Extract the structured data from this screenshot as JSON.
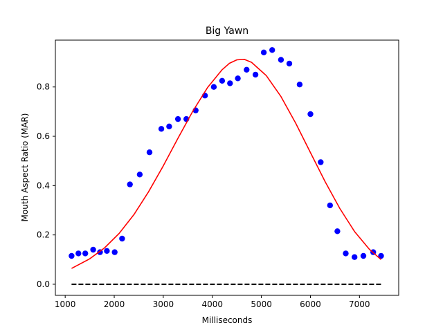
{
  "chart_data": {
    "type": "scatter",
    "title": "Big Yawn",
    "xlabel": "Milliseconds",
    "ylabel": "Mouth Aspect Ratio (MAR)",
    "xlim": [
      800,
      7800
    ],
    "ylim": [
      -0.045,
      0.99
    ],
    "xticks": [
      1000,
      2000,
      3000,
      4000,
      5000,
      6000,
      7000
    ],
    "yticks": [
      0.0,
      0.2,
      0.4,
      0.6,
      0.8
    ],
    "xtick_labels": [
      "1000",
      "2000",
      "3000",
      "4000",
      "5000",
      "6000",
      "7000"
    ],
    "ytick_labels": [
      "0.0",
      "0.2",
      "0.4",
      "0.6",
      "0.8"
    ],
    "grid": false,
    "colors": {
      "points": "#0000ff",
      "fit": "#ff0000",
      "baseline": "#000000"
    },
    "series": [
      {
        "kind": "points",
        "x": [
          1130,
          1270,
          1410,
          1570,
          1710,
          1850,
          2010,
          2160,
          2320,
          2520,
          2720,
          2960,
          3120,
          3300,
          3470,
          3660,
          3850,
          4030,
          4200,
          4360,
          4520,
          4700,
          4880,
          5050,
          5220,
          5400,
          5570,
          5780,
          6000,
          6210,
          6400,
          6550,
          6720,
          6900,
          7080,
          7280,
          7440
        ],
        "y": [
          0.115,
          0.125,
          0.125,
          0.14,
          0.13,
          0.135,
          0.13,
          0.185,
          0.405,
          0.445,
          0.535,
          0.63,
          0.64,
          0.67,
          0.67,
          0.705,
          0.765,
          0.8,
          0.825,
          0.815,
          0.835,
          0.87,
          0.85,
          0.94,
          0.95,
          0.91,
          0.895,
          0.81,
          0.69,
          0.495,
          0.32,
          0.215,
          0.125,
          0.11,
          0.115,
          0.13,
          0.115
        ]
      },
      {
        "kind": "fit-line",
        "x": [
          1130,
          1500,
          1800,
          2100,
          2400,
          2700,
          3000,
          3300,
          3600,
          3900,
          4200,
          4350,
          4500,
          4650,
          4800,
          5100,
          5400,
          5700,
          6000,
          6300,
          6600,
          6900,
          7200,
          7440
        ],
        "y": [
          0.064,
          0.103,
          0.147,
          0.206,
          0.282,
          0.375,
          0.48,
          0.592,
          0.701,
          0.797,
          0.87,
          0.896,
          0.91,
          0.912,
          0.9,
          0.846,
          0.761,
          0.653,
          0.534,
          0.416,
          0.307,
          0.214,
          0.142,
          0.1
        ]
      },
      {
        "kind": "baseline",
        "x": [
          1130,
          7440
        ],
        "y": [
          0.0,
          0.0
        ]
      }
    ]
  }
}
